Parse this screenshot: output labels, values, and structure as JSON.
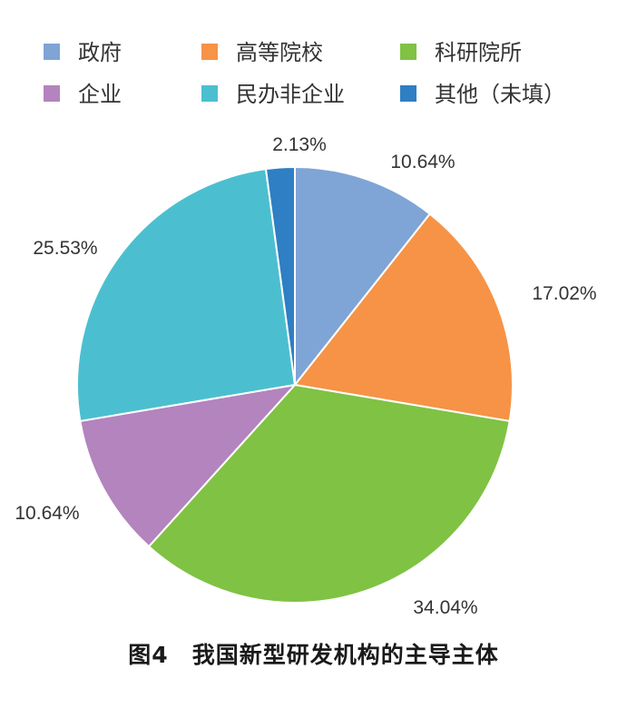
{
  "chart_data": {
    "type": "pie",
    "caption": "图4　我国新型研发机构的主导主体",
    "start": "12 o'clock",
    "direction": "clockwise",
    "legend_position": "top",
    "slices": [
      {
        "name": "政府",
        "value": 10.64,
        "label": "10.64%",
        "color": "#7fa4d6"
      },
      {
        "name": "高等院校",
        "value": 17.02,
        "label": "17.02%",
        "color": "#f69346"
      },
      {
        "name": "科研院所",
        "value": 34.04,
        "label": "34.04%",
        "color": "#80c244"
      },
      {
        "name": "企业",
        "value": 10.64,
        "label": "10.64%",
        "color": "#b384bd"
      },
      {
        "name": "民办非企业",
        "value": 25.53,
        "label": "25.53%",
        "color": "#4bbfd0"
      },
      {
        "name": "其他（未填）",
        "value": 2.13,
        "label": "2.13%",
        "color": "#2e7fc3"
      }
    ]
  }
}
